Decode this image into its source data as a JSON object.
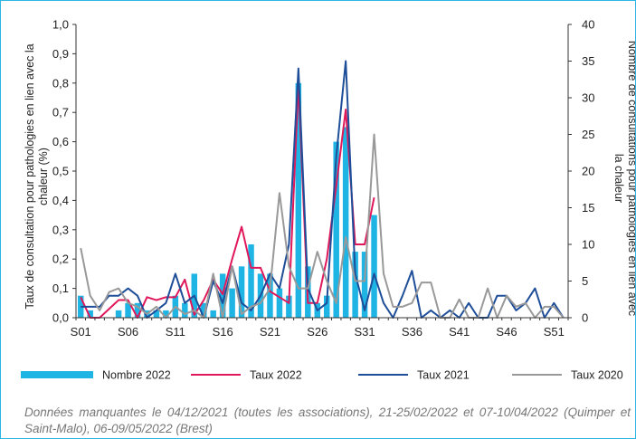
{
  "chart_data": {
    "type": "bar+line",
    "y_left_label_lines": [
      "Taux de consultation pour pathologies en lien avec la",
      "chaleur (%)"
    ],
    "y_right_label_lines": [
      "Nombre de consultations pour pathologies en lien avec",
      "la chaleur"
    ],
    "y_left_lim": [
      0,
      1.0
    ],
    "y_right_lim": [
      0,
      40
    ],
    "y_left_ticks": [
      "0,0",
      "0,1",
      "0,2",
      "0,3",
      "0,4",
      "0,5",
      "0,6",
      "0,7",
      "0,8",
      "0,9",
      "1,0"
    ],
    "y_right_ticks": [
      "0",
      "5",
      "10",
      "15",
      "20",
      "25",
      "30",
      "35",
      "40"
    ],
    "x_tick_labels": [
      "S01",
      "S06",
      "S11",
      "S16",
      "S21",
      "S26",
      "S31",
      "S36",
      "S41",
      "S46",
      "S51"
    ],
    "x_weeks": [
      1,
      2,
      3,
      4,
      5,
      6,
      7,
      8,
      9,
      10,
      11,
      12,
      13,
      14,
      15,
      16,
      17,
      18,
      19,
      20,
      21,
      22,
      23,
      24,
      25,
      26,
      27,
      28,
      29,
      30,
      31,
      32,
      33,
      34,
      35,
      36,
      37,
      38,
      39,
      40,
      41,
      42,
      43,
      44,
      45,
      46,
      47,
      48,
      49,
      50,
      51,
      52
    ],
    "series": [
      {
        "name": "Nombre 2022",
        "kind": "bar",
        "axis": "right",
        "color": "#1eb4e4",
        "values": [
          3,
          1,
          0,
          0,
          1,
          2,
          2,
          1,
          1,
          1,
          3,
          2,
          6,
          2,
          1,
          6,
          4,
          7,
          10,
          6,
          6,
          4,
          3,
          32,
          7,
          2,
          3,
          24,
          26,
          9,
          9,
          14,
          null,
          null,
          null,
          null,
          null,
          null,
          null,
          null,
          null,
          null,
          null,
          null,
          null,
          null,
          null,
          null,
          null,
          null,
          null,
          null
        ]
      },
      {
        "name": "Taux 2022",
        "kind": "line",
        "axis": "left",
        "color": "#e0185a",
        "values": [
          0.07,
          0,
          0,
          0.03,
          0.06,
          0.06,
          0,
          0.07,
          0.06,
          0.07,
          0.07,
          0.13,
          0.01,
          0.06,
          0.13,
          0.08,
          0.2,
          0.31,
          0.17,
          0.17,
          0.09,
          0.07,
          0.05,
          0.8,
          0.05,
          0.05,
          0.2,
          0.45,
          0.71,
          0.25,
          0.25,
          0.41,
          null,
          null,
          null,
          null,
          null,
          null,
          null,
          null,
          null,
          null,
          null,
          null,
          null,
          null,
          null,
          null,
          null,
          null,
          null,
          null
        ]
      },
      {
        "name": "Taux 2021",
        "kind": "line",
        "axis": "right",
        "color": "#1f4e99",
        "values": [
          1.5,
          1.5,
          1.5,
          3,
          3,
          4,
          3,
          0,
          1,
          2,
          6,
          2,
          3,
          0,
          5,
          2,
          7,
          2,
          1,
          3,
          6,
          4,
          10,
          34,
          4,
          1,
          2,
          22,
          35,
          6,
          1,
          6,
          2,
          0,
          3,
          6.4,
          0,
          1,
          0,
          1,
          0,
          2,
          0,
          0,
          3,
          3,
          1,
          2,
          4,
          0,
          2,
          0
        ]
      },
      {
        "name": "Taux 2020",
        "kind": "line",
        "axis": "right",
        "color": "#999999",
        "values": [
          9.5,
          3,
          1,
          3.5,
          4,
          2,
          1.5,
          0.5,
          1.5,
          0,
          1.5,
          0.5,
          1,
          0,
          6,
          0,
          7,
          0.5,
          1.5,
          2,
          4,
          17,
          7,
          4,
          4,
          9,
          5,
          2,
          11,
          5,
          5,
          25,
          6,
          1.5,
          1.5,
          2,
          4.8,
          4.8,
          0,
          0,
          2.5,
          0,
          0,
          4,
          0,
          3,
          1.5,
          2,
          0,
          1.5,
          1.5,
          0
        ]
      }
    ]
  },
  "legend": [
    {
      "label": "Nombre 2022",
      "kind": "bar",
      "color": "#1eb4e4"
    },
    {
      "label": "Taux 2022",
      "kind": "line",
      "color": "#e0185a"
    },
    {
      "label": "Taux 2021",
      "kind": "line",
      "color": "#1f4e99"
    },
    {
      "label": "Taux 2020",
      "kind": "line",
      "color": "#999999"
    }
  ],
  "footnote": "Données manquantes le 04/12/2021 (toutes les associations), 21-25/02/2022 et 07-10/04/2022 (Quimper et Saint-Malo), 06-09/05/2022 (Brest)"
}
